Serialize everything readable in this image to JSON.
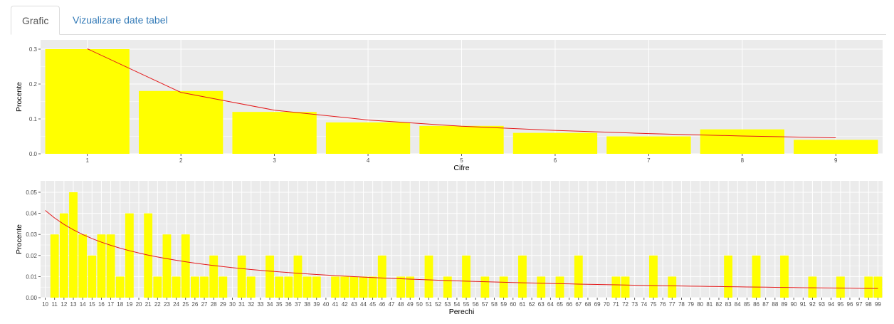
{
  "tabs": [
    {
      "label": "Grafic",
      "active": true
    },
    {
      "label": "Vizualizare date tabel",
      "active": false
    }
  ],
  "colors": {
    "panel": "#ebebeb",
    "grid": "#ffffff",
    "bar": "#ffff00",
    "line": "#e41a1c",
    "tick": "#4d4d4d"
  },
  "chart_data": [
    {
      "type": "bar",
      "xlabel": "Cifre",
      "ylabel": "Procente",
      "categories": [
        "1",
        "2",
        "3",
        "4",
        "5",
        "6",
        "7",
        "8",
        "9"
      ],
      "values": [
        0.3,
        0.18,
        0.12,
        0.09,
        0.08,
        0.06,
        0.05,
        0.07,
        0.04
      ],
      "line_values": [
        0.301,
        0.176,
        0.125,
        0.097,
        0.079,
        0.067,
        0.058,
        0.051,
        0.046
      ],
      "ylim": [
        0,
        0.3
      ],
      "yticks": [
        0.0,
        0.1,
        0.2,
        0.3
      ],
      "ytick_labels": [
        "0.0",
        "0.1",
        "0.2",
        "0.3"
      ],
      "grid": true
    },
    {
      "type": "bar",
      "xlabel": "Perechi",
      "ylabel": "Procente",
      "categories": [
        "10",
        "11",
        "12",
        "13",
        "14",
        "15",
        "16",
        "17",
        "18",
        "19",
        "20",
        "21",
        "22",
        "23",
        "24",
        "25",
        "26",
        "27",
        "28",
        "29",
        "30",
        "31",
        "32",
        "33",
        "34",
        "35",
        "36",
        "37",
        "38",
        "39",
        "40",
        "41",
        "42",
        "43",
        "44",
        "45",
        "46",
        "47",
        "48",
        "49",
        "50",
        "51",
        "52",
        "53",
        "54",
        "55",
        "56",
        "57",
        "58",
        "59",
        "60",
        "61",
        "62",
        "63",
        "64",
        "65",
        "66",
        "67",
        "68",
        "69",
        "70",
        "71",
        "72",
        "73",
        "74",
        "75",
        "76",
        "77",
        "78",
        "79",
        "80",
        "81",
        "82",
        "83",
        "84",
        "85",
        "86",
        "87",
        "88",
        "89",
        "90",
        "91",
        "92",
        "93",
        "94",
        "95",
        "96",
        "97",
        "98",
        "99"
      ],
      "values": [
        0,
        0.03,
        0.04,
        0.05,
        0.03,
        0.02,
        0.03,
        0.03,
        0.01,
        0.04,
        0,
        0.04,
        0.01,
        0.03,
        0.01,
        0.03,
        0.01,
        0.01,
        0.02,
        0.01,
        0,
        0.02,
        0.01,
        0,
        0.02,
        0.01,
        0.01,
        0.02,
        0.01,
        0.01,
        0,
        0.01,
        0.01,
        0.01,
        0.01,
        0.01,
        0.02,
        0,
        0.01,
        0.01,
        0,
        0.02,
        0,
        0.01,
        0,
        0.02,
        0,
        0.01,
        0,
        0.01,
        0,
        0.02,
        0,
        0.01,
        0,
        0.01,
        0,
        0.02,
        0,
        0,
        0,
        0.01,
        0.01,
        0,
        0,
        0.02,
        0,
        0.01,
        0,
        0,
        0,
        0,
        0,
        0.02,
        0,
        0,
        0.02,
        0,
        0,
        0.02,
        0,
        0,
        0.01,
        0,
        0,
        0.01,
        0,
        0,
        0.01,
        0.01
      ],
      "line_values": "log10(1 + 1/x)",
      "ylim": [
        0,
        0.05
      ],
      "yticks": [
        0.0,
        0.01,
        0.02,
        0.03,
        0.04,
        0.05
      ],
      "ytick_labels": [
        "0.00",
        "0.01",
        "0.02",
        "0.03",
        "0.04",
        "0.05"
      ],
      "grid": true
    }
  ]
}
